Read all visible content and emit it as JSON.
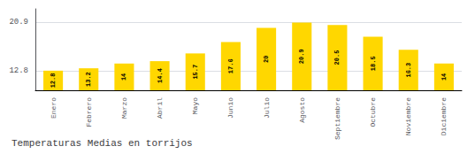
{
  "chart_data": {
    "type": "bar",
    "title": "Temperaturas Medias en torrijos",
    "categories": [
      "Enero",
      "Febrero",
      "Marzo",
      "Abril",
      "Mayo",
      "Junio",
      "Julio",
      "Agosto",
      "Septiembre",
      "Octubre",
      "Noviembre",
      "Diciembre"
    ],
    "values": [
      12.8,
      13.2,
      14.0,
      14.4,
      15.7,
      17.6,
      20.0,
      20.9,
      20.5,
      18.5,
      16.3,
      14.0
    ],
    "color": "#FFD700",
    "ylim": [
      9.5,
      23.2
    ],
    "yticks": [
      12.8,
      20.9
    ],
    "grid": true,
    "data_labels": true
  }
}
